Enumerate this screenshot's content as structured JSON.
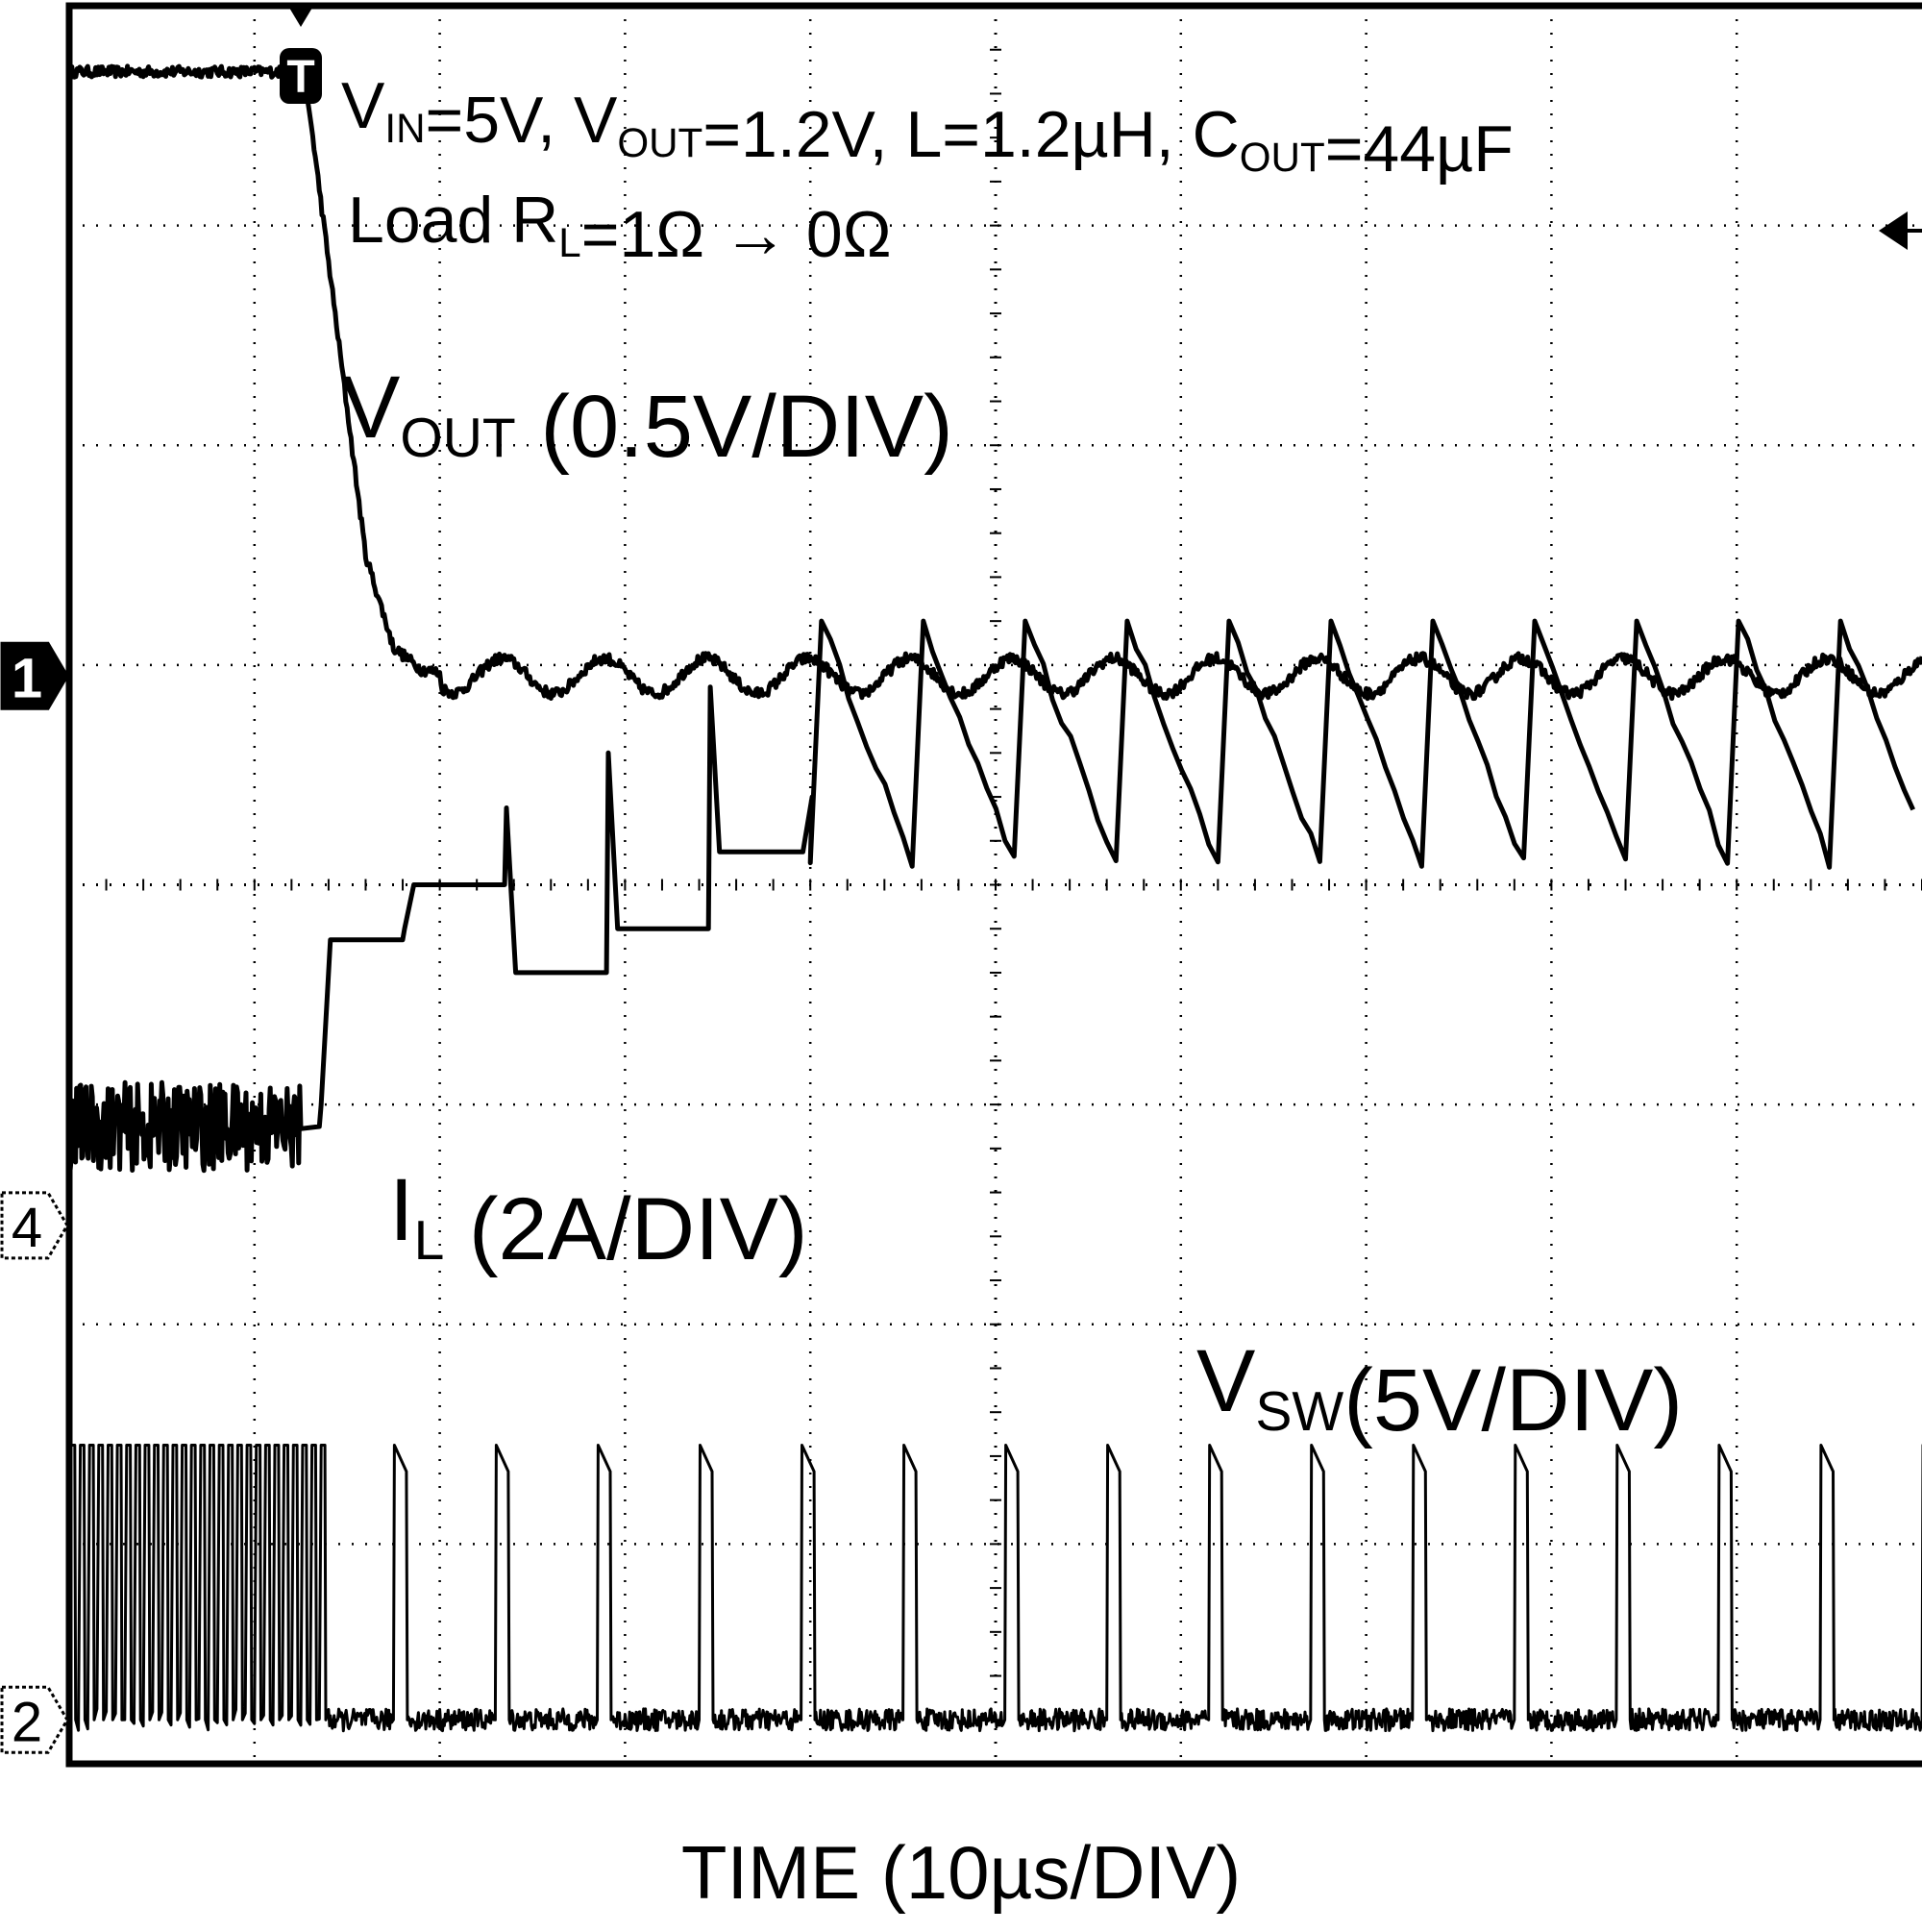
{
  "chart_data": {
    "type": "line",
    "title": "",
    "annotation": {
      "line1": [
        {
          "t": "V",
          "sub": "IN"
        },
        {
          "t": "=5V, "
        },
        {
          "t": "V",
          "sub": "OUT"
        },
        {
          "t": "=1.2V, L=1.2µH, "
        },
        {
          "t": "C",
          "sub": "OUT"
        },
        {
          "t": "=44µF"
        }
      ],
      "line2": [
        {
          "t": "Load R",
          "sub": "L"
        },
        {
          "t": "=1Ω → 0Ω"
        }
      ]
    },
    "xlabel": "TIME (10µs/DIV)",
    "grid": {
      "x_divisions": 10,
      "y_divisions": 8,
      "style": "dotted"
    },
    "trigger_marker": "T",
    "channel_markers": [
      "1",
      "4",
      "2"
    ],
    "series": [
      {
        "name": "VOUT",
        "label": {
          "main": "V",
          "sub": "OUT",
          "rest": " (0.5V/DIV)"
        },
        "scale": "0.5V/DIV",
        "x_div": [
          0,
          1.25,
          1.3,
          1.45,
          1.6,
          1.75,
          1.9,
          2.1,
          10
        ],
        "y_div": [
          7.7,
          7.7,
          7.5,
          6.5,
          5.5,
          5.08,
          4.98,
          4.95,
          4.95
        ],
        "ripple_period_div": 0.55,
        "ripple_amplitude_div": 0.08
      },
      {
        "name": "IL",
        "label": {
          "main": "I",
          "sub": "L",
          "rest": " (2A/DIV)"
        },
        "scale": "2A/DIV",
        "initial_level_div": 2.9,
        "transient_peaks_div": [
          [
            1.35,
            3.0,
            3.75
          ],
          [
            1.8,
            3.8,
            4.0
          ],
          [
            2.35,
            4.35,
            3.6
          ],
          [
            2.9,
            4.6,
            3.8
          ],
          [
            3.45,
            4.9,
            4.15
          ],
          [
            3.95,
            4.15,
            4.4
          ]
        ],
        "steady_peak_div": 5.2,
        "steady_valley_div": 4.1,
        "switching_period_div": 0.55
      },
      {
        "name": "VSW",
        "label": {
          "main": "V",
          "sub": "SW",
          "rest": "(5V/DIV)"
        },
        "scale": "5V/DIV",
        "baseline_div": 0.2,
        "pulse_high_div": 1.45,
        "pulse_period_div": 0.55,
        "pulse_width_div": 0.08,
        "dense_switching_until_div": 1.4
      }
    ]
  }
}
